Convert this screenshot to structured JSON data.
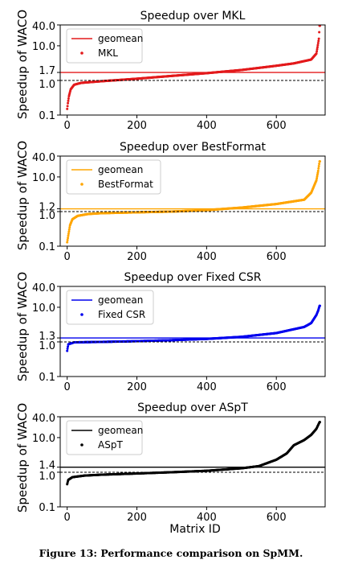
{
  "figure": {
    "caption": "Figure 13: Performance comparison on SpMM.",
    "shared_ylabel": "Speedup of WACO",
    "shared_xlabel": "Matrix ID"
  },
  "chart_data": [
    {
      "type": "scatter",
      "title": "Speedup over MKL",
      "ylabel": "Speedup of WACO",
      "xlabel": "",
      "x_scale": "linear",
      "y_scale": "log",
      "xlim": [
        -20,
        740
      ],
      "ylim": [
        0.1,
        40.0
      ],
      "xticks": [
        0,
        200,
        400,
        600
      ],
      "yticks": [
        0.1,
        1.0,
        1.7,
        10.0,
        40.0
      ],
      "ytick_labels": [
        "0.1",
        "1.0",
        "1.7",
        "10.0",
        "40.0"
      ],
      "geomean": 1.7,
      "reference_line": 1.0,
      "color": "#e31a1c",
      "legend": {
        "placement": "upper-left",
        "entries": [
          "geomean",
          "MKL"
        ]
      },
      "series": [
        {
          "name": "MKL",
          "n": 726,
          "curve": [
            [
              0,
              0.15
            ],
            [
              2,
              0.22
            ],
            [
              5,
              0.35
            ],
            [
              10,
              0.55
            ],
            [
              20,
              0.75
            ],
            [
              40,
              0.85
            ],
            [
              100,
              0.95
            ],
            [
              200,
              1.12
            ],
            [
              300,
              1.35
            ],
            [
              400,
              1.62
            ],
            [
              500,
              2.0
            ],
            [
              600,
              2.65
            ],
            [
              650,
              3.1
            ],
            [
              700,
              4.0
            ],
            [
              715,
              6.0
            ],
            [
              720,
              12.0
            ],
            [
              722,
              16.0
            ],
            [
              724,
              38.0
            ]
          ]
        }
      ]
    },
    {
      "type": "scatter",
      "title": "Speedup over BestFormat",
      "ylabel": "Speedup of WACO",
      "xlabel": "",
      "x_scale": "linear",
      "y_scale": "log",
      "xlim": [
        -20,
        740
      ],
      "ylim": [
        0.1,
        40.0
      ],
      "xticks": [
        0,
        200,
        400,
        600
      ],
      "yticks": [
        0.1,
        1.0,
        1.2,
        10.0,
        40.0
      ],
      "ytick_labels": [
        "0.1",
        "1.0",
        "1.2",
        "10.0",
        "40.0"
      ],
      "geomean": 1.2,
      "reference_line": 1.0,
      "color": "#ffa500",
      "legend": {
        "placement": "upper-left",
        "entries": [
          "geomean",
          "BestFormat"
        ]
      },
      "series": [
        {
          "name": "BestFormat",
          "n": 726,
          "curve": [
            [
              0,
              0.13
            ],
            [
              3,
              0.2
            ],
            [
              8,
              0.4
            ],
            [
              15,
              0.6
            ],
            [
              30,
              0.75
            ],
            [
              60,
              0.85
            ],
            [
              100,
              0.9
            ],
            [
              200,
              0.95
            ],
            [
              300,
              1.0
            ],
            [
              400,
              1.1
            ],
            [
              500,
              1.3
            ],
            [
              600,
              1.65
            ],
            [
              680,
              2.2
            ],
            [
              700,
              3.5
            ],
            [
              715,
              8.0
            ],
            [
              720,
              15.0
            ],
            [
              724,
              28.0
            ]
          ]
        }
      ]
    },
    {
      "type": "scatter",
      "title": "Speedup over Fixed CSR",
      "ylabel": "Speedup of WACO",
      "xlabel": "",
      "x_scale": "linear",
      "y_scale": "log",
      "xlim": [
        -20,
        740
      ],
      "ylim": [
        0.1,
        40.0
      ],
      "xticks": [
        0,
        200,
        400,
        600
      ],
      "yticks": [
        0.1,
        1.0,
        1.3,
        10.0,
        40.0
      ],
      "ytick_labels": [
        "0.1",
        "1.0",
        "1.3",
        "10.0",
        "40.0"
      ],
      "geomean": 1.3,
      "reference_line": 1.0,
      "color": "#0000ee",
      "legend": {
        "placement": "upper-left",
        "entries": [
          "geomean",
          "Fixed CSR"
        ]
      },
      "series": [
        {
          "name": "Fixed CSR",
          "n": 726,
          "curve": [
            [
              0,
              0.55
            ],
            [
              3,
              0.85
            ],
            [
              20,
              0.97
            ],
            [
              100,
              1.0
            ],
            [
              200,
              1.05
            ],
            [
              300,
              1.12
            ],
            [
              400,
              1.22
            ],
            [
              500,
              1.4
            ],
            [
              600,
              1.8
            ],
            [
              680,
              2.7
            ],
            [
              700,
              3.5
            ],
            [
              715,
              6.0
            ],
            [
              720,
              8.0
            ],
            [
              724,
              11.0
            ]
          ]
        }
      ]
    },
    {
      "type": "scatter",
      "title": "Speedup over ASpT",
      "ylabel": "Speedup of WACO",
      "xlabel": "Matrix ID",
      "x_scale": "linear",
      "y_scale": "log",
      "xlim": [
        -20,
        740
      ],
      "ylim": [
        0.1,
        40.0
      ],
      "xticks": [
        0,
        200,
        400,
        600
      ],
      "yticks": [
        0.1,
        1.0,
        1.4,
        10.0,
        40.0
      ],
      "ytick_labels": [
        "0.1",
        "1.0",
        "1.4",
        "10.0",
        "40.0"
      ],
      "geomean": 1.4,
      "reference_line": 1.0,
      "color": "#000000",
      "legend": {
        "placement": "upper-left",
        "entries": [
          "geomean",
          "ASpT"
        ]
      },
      "series": [
        {
          "name": "ASpT",
          "n": 726,
          "curve": [
            [
              0,
              0.45
            ],
            [
              3,
              0.6
            ],
            [
              15,
              0.72
            ],
            [
              50,
              0.8
            ],
            [
              100,
              0.85
            ],
            [
              200,
              0.92
            ],
            [
              300,
              1.0
            ],
            [
              400,
              1.1
            ],
            [
              500,
              1.3
            ],
            [
              550,
              1.5
            ],
            [
              600,
              2.3
            ],
            [
              630,
              3.5
            ],
            [
              650,
              6.0
            ],
            [
              680,
              8.5
            ],
            [
              700,
              12.0
            ],
            [
              715,
              18.0
            ],
            [
              724,
              28.0
            ]
          ]
        }
      ]
    }
  ]
}
